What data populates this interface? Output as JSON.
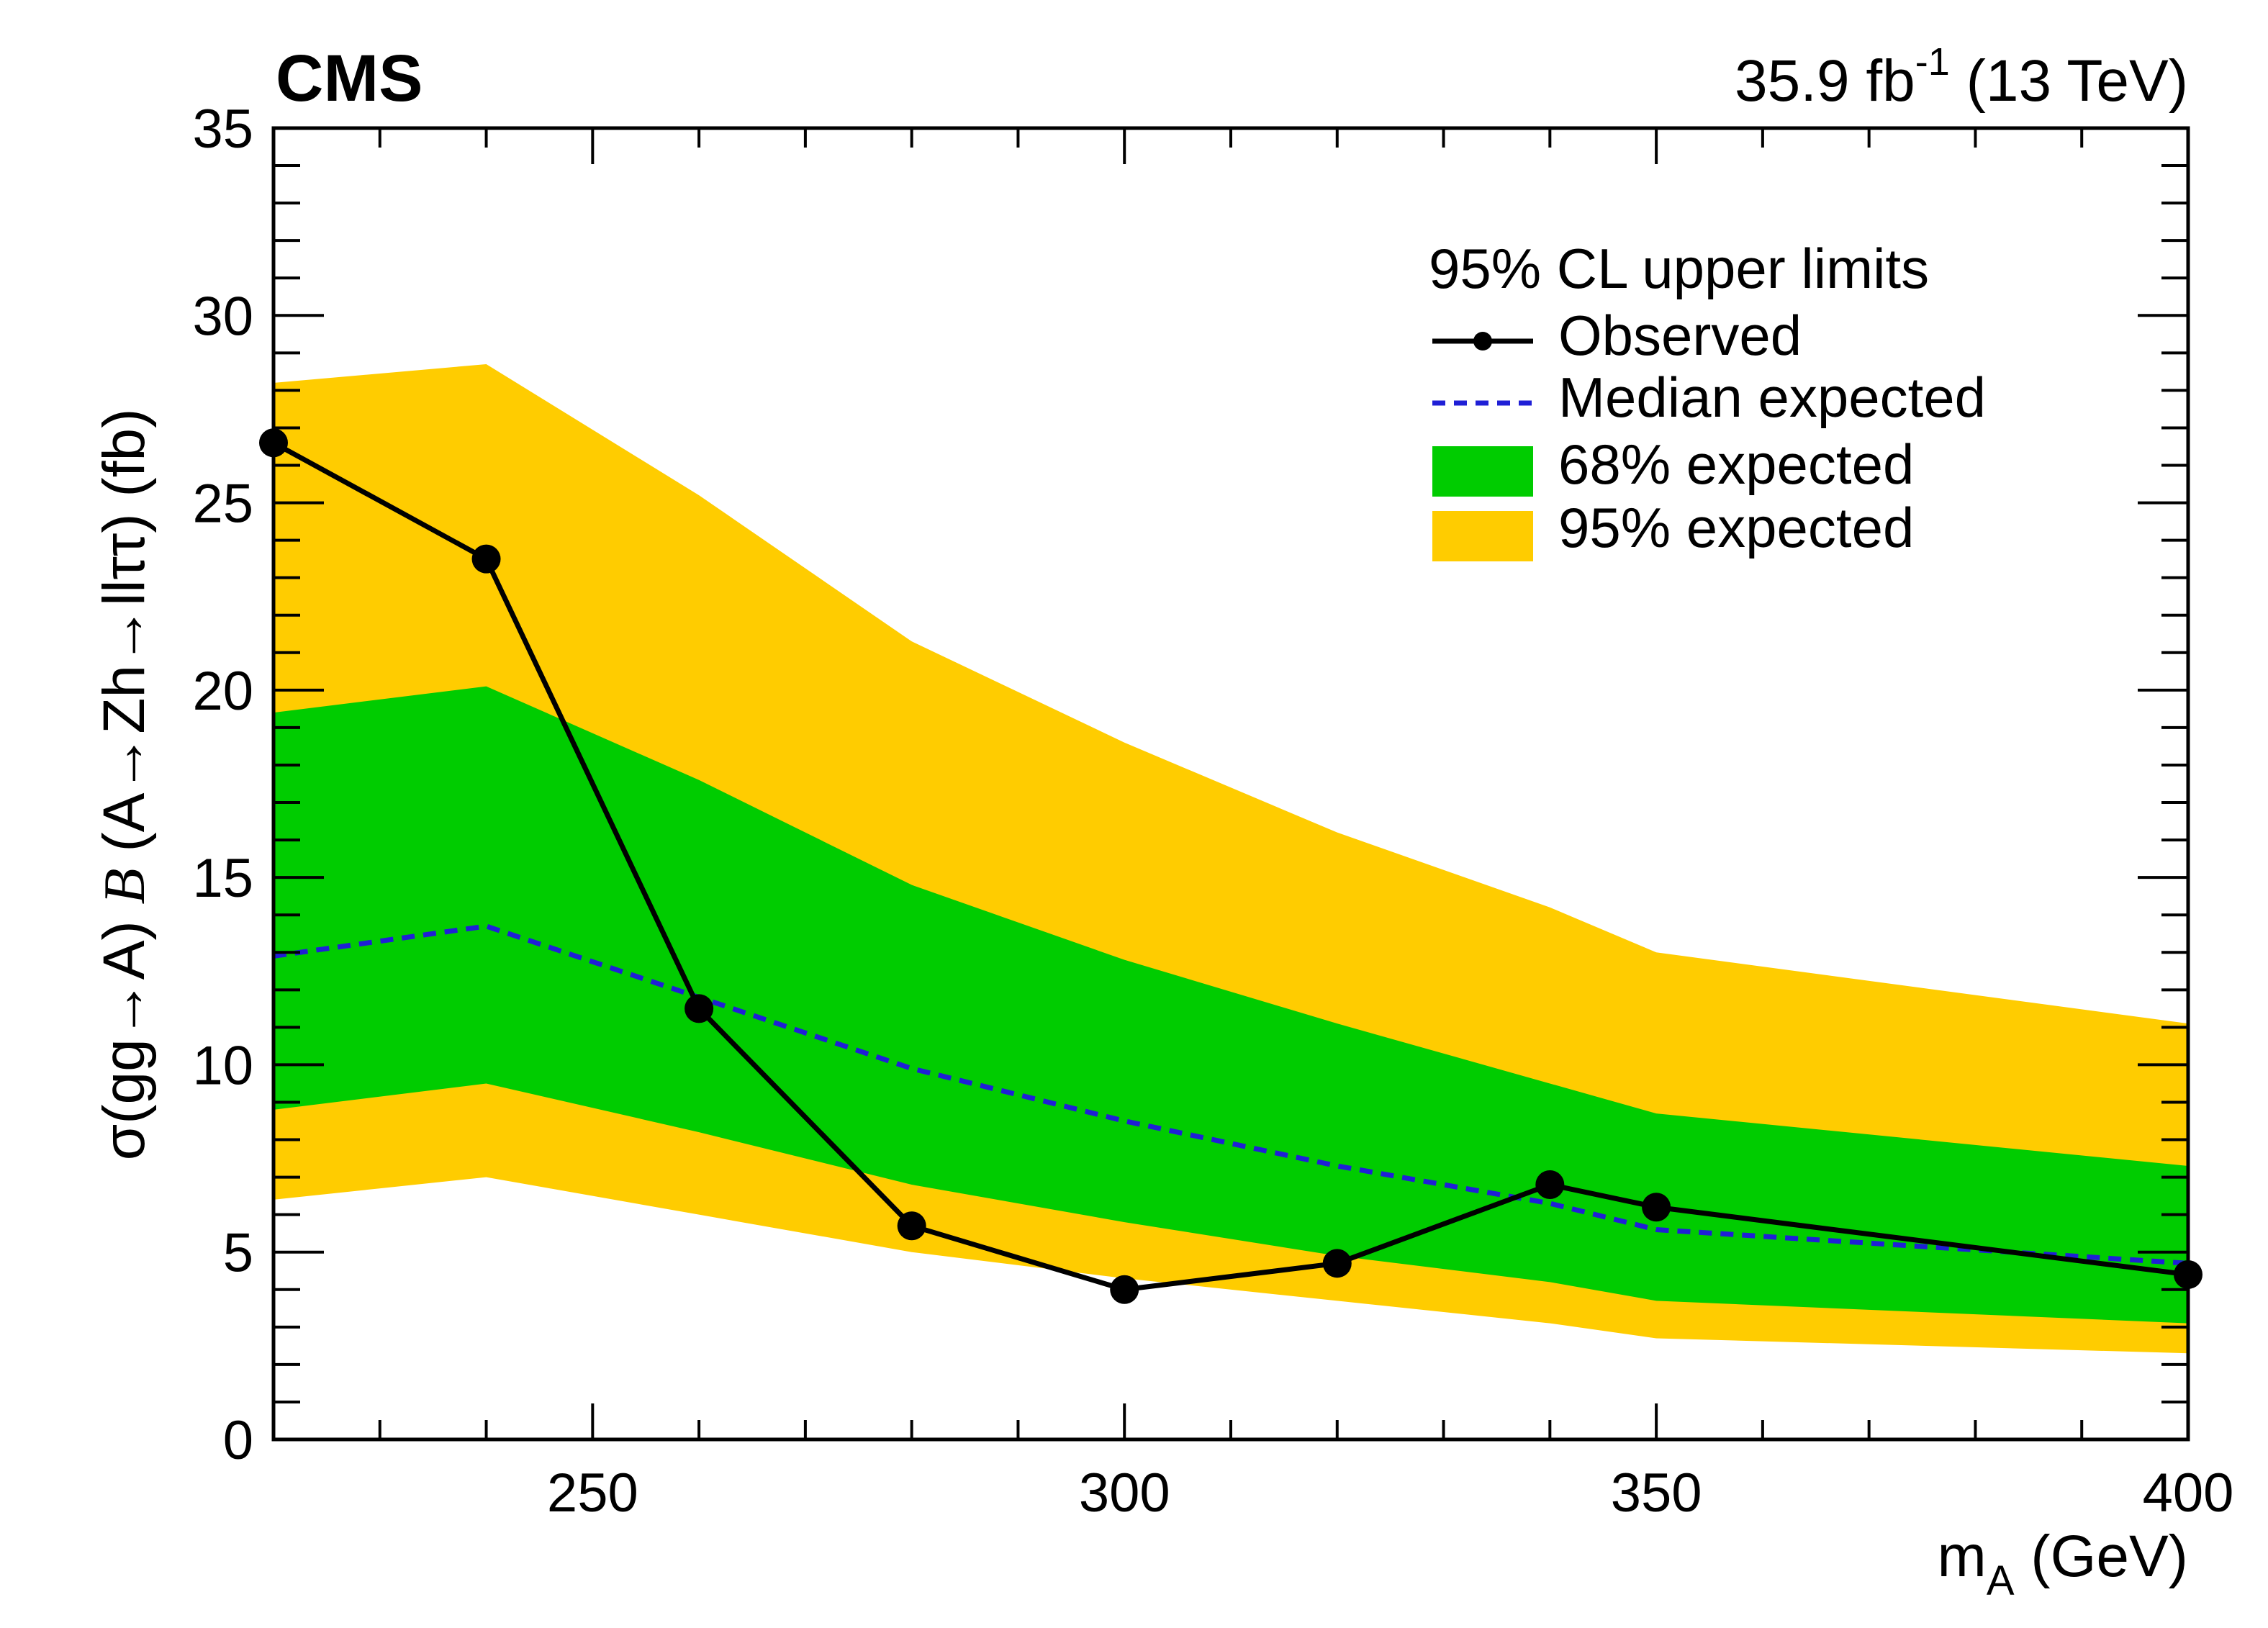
{
  "header": {
    "experiment": "CMS",
    "lumi_value": "35.9 fb",
    "lumi_exponent": "-1",
    "lumi_energy": " (13 TeV)"
  },
  "axes": {
    "y_title_pre": "σ(gg→A) ",
    "y_title_b": "B",
    "y_title_post": " (A→Zh→llττ)  (fb)",
    "x_title_main": "m",
    "x_title_sub": "A",
    "x_title_unit": " (GeV)"
  },
  "legend": {
    "header": "95% CL upper limits",
    "observed": "Observed",
    "median": "Median expected",
    "band68": "68% expected",
    "band95": "95% expected"
  },
  "colors": {
    "observed": "#000000",
    "median": "#1f1fd6",
    "band68": "#00cc00",
    "band95": "#ffcc00"
  },
  "chart_data": {
    "type": "line",
    "title": "",
    "xlabel": "m_A (GeV)",
    "ylabel": "σ(gg→A) B (A→Zh→llττ) (fb)",
    "xlim": [
      220,
      400
    ],
    "ylim": [
      0,
      35
    ],
    "x_ticks": [
      250,
      300,
      350,
      400
    ],
    "y_ticks": [
      0,
      5,
      10,
      15,
      20,
      25,
      30,
      35
    ],
    "legend_position": "top-right",
    "grid": false,
    "x": [
      220,
      240,
      260,
      280,
      300,
      320,
      340,
      350,
      400
    ],
    "series": [
      {
        "name": "Observed",
        "values": [
          26.6,
          23.5,
          11.5,
          5.7,
          4.0,
          4.7,
          6.8,
          6.2,
          4.4
        ]
      },
      {
        "name": "Median expected",
        "values": [
          12.9,
          13.7,
          11.8,
          9.9,
          8.5,
          7.3,
          6.3,
          5.6,
          4.7
        ]
      },
      {
        "name": "68% expected",
        "lower": [
          8.8,
          9.5,
          8.2,
          6.8,
          5.8,
          4.9,
          4.2,
          3.7,
          3.1
        ],
        "upper": [
          19.4,
          20.1,
          17.6,
          14.8,
          12.8,
          11.1,
          9.5,
          8.7,
          7.3
        ]
      },
      {
        "name": "95% expected",
        "lower": [
          6.4,
          7.0,
          6.0,
          5.0,
          4.3,
          3.7,
          3.1,
          2.7,
          2.3
        ],
        "upper": [
          28.2,
          28.7,
          25.2,
          21.3,
          18.6,
          16.2,
          14.2,
          13.0,
          11.1
        ]
      }
    ]
  }
}
